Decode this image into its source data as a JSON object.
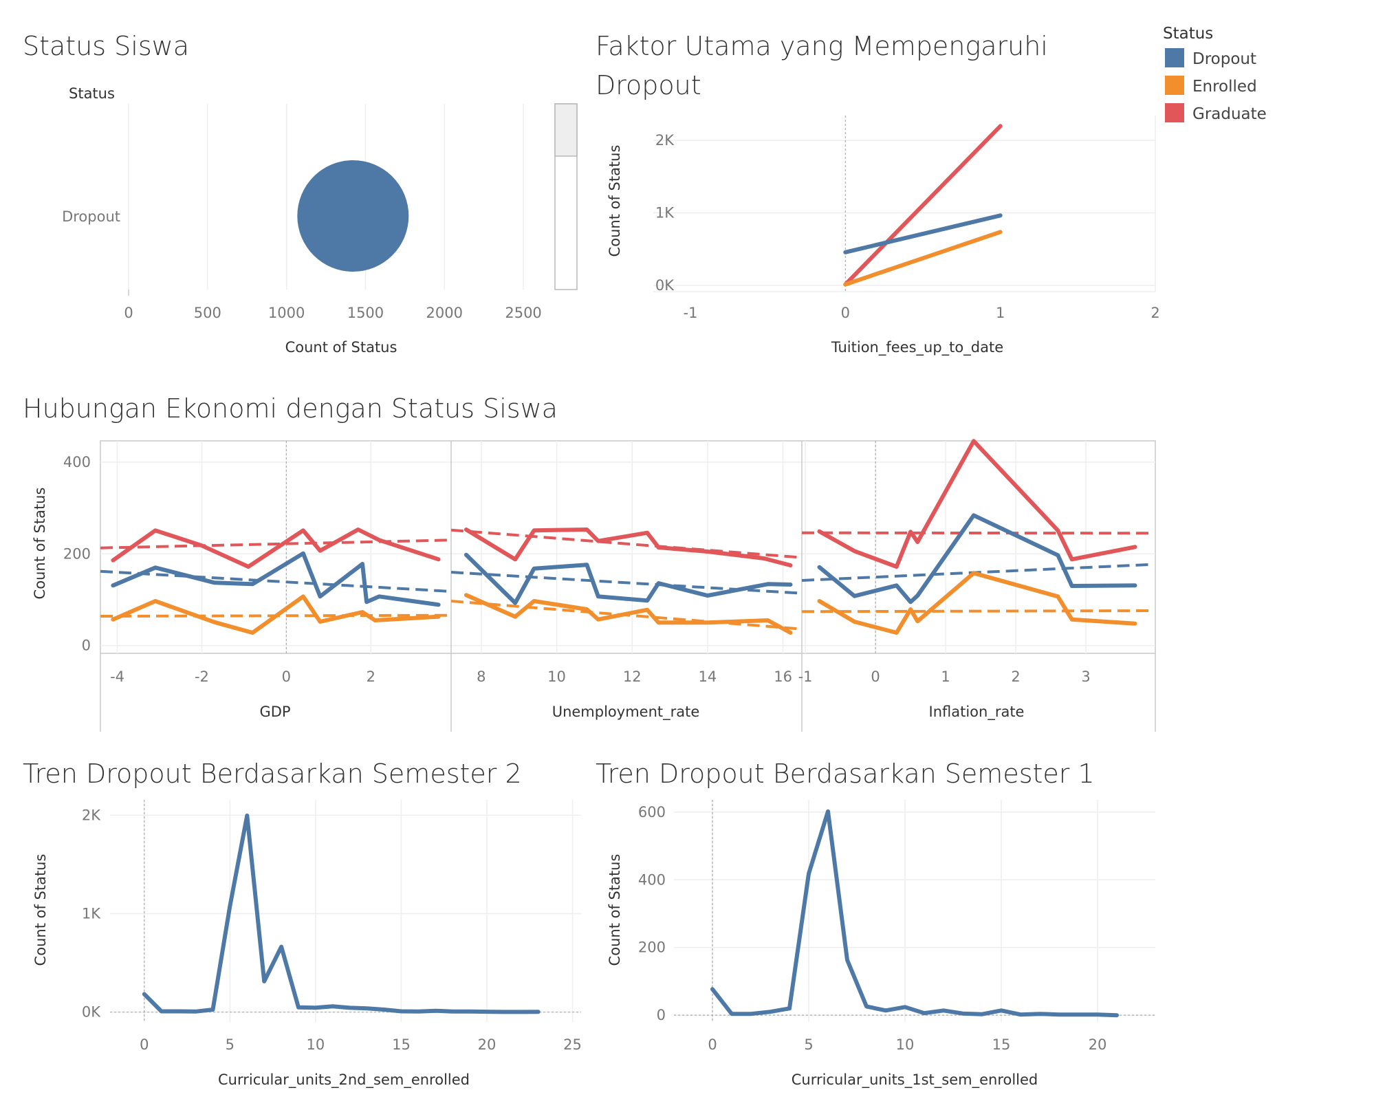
{
  "colors": {
    "Dropout": "#4e79a7",
    "Enrolled": "#f28e2b",
    "Graduate": "#e15759"
  },
  "legend": {
    "title": "Status",
    "items": [
      "Dropout",
      "Enrolled",
      "Graduate"
    ]
  },
  "chart_data": [
    {
      "id": "status_siswa",
      "type": "scatter",
      "title": "Status Siswa",
      "row_header": "Status",
      "rows": [
        "Dropout"
      ],
      "xlabel": "Count of Status",
      "xlim": [
        0,
        2700
      ],
      "xticks": [
        0,
        500,
        1000,
        1500,
        2000,
        2500
      ],
      "points": [
        {
          "status": "Dropout",
          "value": 1421
        }
      ]
    },
    {
      "id": "faktor",
      "type": "line",
      "title": "Faktor Utama yang Mempengaruhi Dropout",
      "xlabel": "Tuition_fees_up_to_date",
      "ylabel": "Count of Status",
      "xlim": [
        -1,
        2
      ],
      "ylim": [
        0,
        2200
      ],
      "xticks": [
        {
          "v": -1,
          "t": "-1"
        },
        {
          "v": 0,
          "t": "0"
        },
        {
          "v": 1,
          "t": "1"
        },
        {
          "v": 2,
          "t": "2"
        }
      ],
      "yticks": [
        {
          "v": 0,
          "t": "0K"
        },
        {
          "v": 1000,
          "t": "1K"
        },
        {
          "v": 2000,
          "t": "2K"
        }
      ],
      "series": [
        {
          "name": "Graduate",
          "x": [
            0,
            1
          ],
          "y": [
            13,
            2197
          ]
        },
        {
          "name": "Dropout",
          "x": [
            0,
            1
          ],
          "y": [
            457,
            964
          ]
        },
        {
          "name": "Enrolled",
          "x": [
            0,
            1
          ],
          "y": [
            13,
            737
          ]
        }
      ]
    },
    {
      "id": "ekonomi",
      "type": "line",
      "title": "Hubungan Ekonomi dengan Status Siswa",
      "ylabel": "Count of Status",
      "ylim": [
        -20,
        460
      ],
      "yticks": [
        {
          "v": 0,
          "t": "0"
        },
        {
          "v": 200,
          "t": "200"
        },
        {
          "v": 400,
          "t": "400"
        }
      ],
      "panels": [
        {
          "xlabel": "GDP",
          "xlim": [
            -4.4,
            3.9
          ],
          "xticks": [
            {
              "v": -4,
              "t": "-4"
            },
            {
              "v": -2,
              "t": "-2"
            },
            {
              "v": 0,
              "t": "0"
            },
            {
              "v": 2,
              "t": "2"
            }
          ],
          "series": [
            {
              "name": "Graduate",
              "x": [
                -4.1,
                -3.1,
                -2.0,
                -0.9,
                0.4,
                0.8,
                1.7,
                2.2,
                3.6
              ],
              "y": [
                186,
                251,
                218,
                172,
                251,
                207,
                253,
                230,
                188
              ]
            },
            {
              "name": "Dropout",
              "x": [
                -4.1,
                -3.1,
                -1.7,
                -0.8,
                0.4,
                0.8,
                1.8,
                1.9,
                2.2,
                3.6
              ],
              "y": [
                131,
                170,
                137,
                134,
                201,
                107,
                178,
                95,
                107,
                89
              ]
            },
            {
              "name": "Enrolled",
              "x": [
                -4.1,
                -3.1,
                -1.7,
                -0.8,
                0.4,
                0.8,
                1.8,
                2.1,
                3.6
              ],
              "y": [
                57,
                97,
                51,
                28,
                107,
                52,
                73,
                55,
                63
              ]
            }
          ],
          "trends": [
            {
              "name": "Graduate",
              "x": [
                -4.4,
                3.9
              ],
              "y": [
                213,
                230
              ]
            },
            {
              "name": "Dropout",
              "x": [
                -4.4,
                3.9
              ],
              "y": [
                162,
                118
              ]
            },
            {
              "name": "Enrolled",
              "x": [
                -4.4,
                3.9
              ],
              "y": [
                64,
                66
              ]
            }
          ]
        },
        {
          "xlabel": "Unemployment_rate",
          "xlim": [
            7.2,
            16.5
          ],
          "xticks": [
            {
              "v": 8,
              "t": "8"
            },
            {
              "v": 10,
              "t": "10"
            },
            {
              "v": 12,
              "t": "12"
            },
            {
              "v": 14,
              "t": "14"
            },
            {
              "v": 16,
              "t": "16"
            }
          ],
          "series": [
            {
              "name": "Graduate",
              "x": [
                7.6,
                8.9,
                9.4,
                10.8,
                11.1,
                12.4,
                12.7,
                14.0,
                15.5,
                16.2
              ],
              "y": [
                253,
                188,
                251,
                253,
                228,
                246,
                214,
                205,
                190,
                175
              ]
            },
            {
              "name": "Dropout",
              "x": [
                7.6,
                8.9,
                9.4,
                10.8,
                11.1,
                12.4,
                12.7,
                14.0,
                15.6,
                16.2
              ],
              "y": [
                198,
                93,
                168,
                176,
                107,
                98,
                136,
                109,
                134,
                133
              ]
            },
            {
              "name": "Enrolled",
              "x": [
                7.6,
                8.9,
                9.4,
                10.8,
                11.1,
                12.4,
                12.7,
                14.0,
                15.6,
                16.2
              ],
              "y": [
                110,
                63,
                97,
                79,
                57,
                78,
                50,
                50,
                55,
                28
              ]
            }
          ],
          "trends": [
            {
              "name": "Graduate",
              "x": [
                7.2,
                16.5
              ],
              "y": [
                252,
                192
              ]
            },
            {
              "name": "Dropout",
              "x": [
                7.2,
                16.5
              ],
              "y": [
                160,
                114
              ]
            },
            {
              "name": "Enrolled",
              "x": [
                7.2,
                16.5
              ],
              "y": [
                97,
                36
              ]
            }
          ]
        },
        {
          "xlabel": "Inflation_rate",
          "xlim": [
            -1.05,
            3.95
          ],
          "xticks": [
            {
              "v": -1,
              "t": "-1"
            },
            {
              "v": 0,
              "t": "0"
            },
            {
              "v": 1,
              "t": "1"
            },
            {
              "v": 2,
              "t": "2"
            },
            {
              "v": 3,
              "t": "3"
            }
          ],
          "series": [
            {
              "name": "Graduate",
              "x": [
                -0.8,
                -0.3,
                0.3,
                0.5,
                0.6,
                1.4,
                2.6,
                2.8,
                3.7
              ],
              "y": [
                249,
                206,
                172,
                248,
                226,
                446,
                251,
                188,
                215
              ]
            },
            {
              "name": "Dropout",
              "x": [
                -0.8,
                -0.3,
                0.3,
                0.5,
                0.6,
                1.4,
                2.6,
                2.8,
                3.7
              ],
              "y": [
                171,
                108,
                131,
                95,
                109,
                284,
                197,
                130,
                131
              ]
            },
            {
              "name": "Enrolled",
              "x": [
                -0.8,
                -0.3,
                0.3,
                0.5,
                0.6,
                1.4,
                2.6,
                2.8,
                3.7
              ],
              "y": [
                97,
                52,
                28,
                79,
                53,
                158,
                107,
                57,
                48
              ]
            }
          ],
          "trends": [
            {
              "name": "Graduate",
              "x": [
                -1.05,
                3.95
              ],
              "y": [
                246,
                245
              ]
            },
            {
              "name": "Dropout",
              "x": [
                -1.05,
                3.95
              ],
              "y": [
                142,
                177
              ]
            },
            {
              "name": "Enrolled",
              "x": [
                -1.05,
                3.95
              ],
              "y": [
                74,
                76
              ]
            }
          ]
        }
      ]
    },
    {
      "id": "sem2",
      "type": "line",
      "title": "Tren Dropout Berdasarkan Semester 2",
      "xlabel": "Curricular_units_2nd_sem_enrolled",
      "ylabel": "Count of Status",
      "xlim": [
        -2,
        25.5
      ],
      "ylim": [
        -100,
        2100
      ],
      "xticks": [
        {
          "v": 0,
          "t": "0"
        },
        {
          "v": 5,
          "t": "5"
        },
        {
          "v": 10,
          "t": "10"
        },
        {
          "v": 15,
          "t": "15"
        },
        {
          "v": 20,
          "t": "20"
        },
        {
          "v": 25,
          "t": "25"
        }
      ],
      "yticks": [
        {
          "v": 0,
          "t": "0K"
        },
        {
          "v": 1000,
          "t": "1K"
        },
        {
          "v": 2000,
          "t": "2K"
        }
      ],
      "series": [
        {
          "name": "Dropout",
          "x": [
            0,
            1,
            2,
            3,
            4,
            5,
            6,
            7,
            8,
            9,
            10,
            11,
            12,
            13,
            14,
            15,
            16,
            17,
            18,
            19,
            20,
            21,
            22,
            23
          ],
          "y": [
            183,
            8,
            8,
            6,
            26,
            1078,
            1996,
            313,
            664,
            49,
            45,
            59,
            44,
            38,
            26,
            8,
            7,
            14,
            6,
            6,
            4,
            2,
            2,
            3
          ]
        }
      ]
    },
    {
      "id": "sem1",
      "type": "line",
      "title": "Tren Dropout Berdasarkan Semester 1",
      "xlabel": "Curricular_units_1st_sem_enrolled",
      "ylabel": "Count of Status",
      "xlim": [
        -2,
        23
      ],
      "ylim": [
        -20,
        620
      ],
      "xticks": [
        {
          "v": 0,
          "t": "0"
        },
        {
          "v": 5,
          "t": "5"
        },
        {
          "v": 10,
          "t": "10"
        },
        {
          "v": 15,
          "t": "15"
        },
        {
          "v": 20,
          "t": "20"
        }
      ],
      "yticks": [
        {
          "v": 0,
          "t": "0"
        },
        {
          "v": 200,
          "t": "200"
        },
        {
          "v": 400,
          "t": "400"
        },
        {
          "v": 600,
          "t": "600"
        }
      ],
      "series": [
        {
          "name": "Dropout",
          "x": [
            0,
            1,
            2,
            3,
            4,
            5,
            6,
            7,
            8,
            9,
            10,
            11,
            12,
            13,
            14,
            15,
            16,
            17,
            18,
            19,
            20,
            21
          ],
          "y": [
            77,
            4,
            4,
            10,
            20,
            418,
            602,
            163,
            26,
            14,
            24,
            6,
            14,
            5,
            3,
            14,
            2,
            4,
            2,
            2,
            2,
            0
          ]
        }
      ]
    }
  ]
}
